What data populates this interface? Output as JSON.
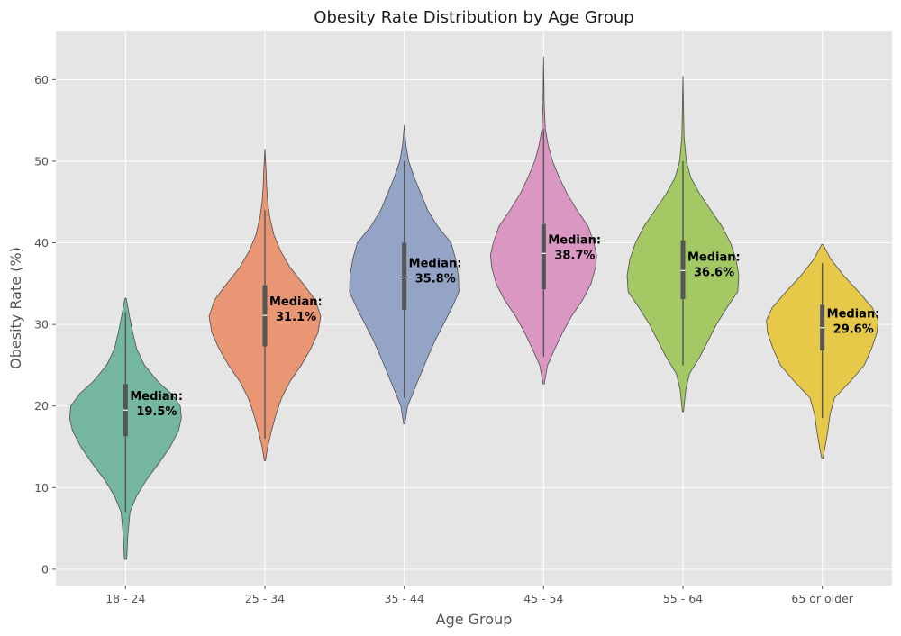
{
  "chart_data": {
    "type": "violin",
    "title": "Obesity Rate Distribution by Age Group",
    "xlabel": "Age Group",
    "ylabel": "Obesity Rate (%)",
    "ylim": [
      -2,
      66
    ],
    "yticks": [
      "0",
      "10",
      "20",
      "30",
      "40",
      "50",
      "60"
    ],
    "grid": true,
    "median_prefix": "Median:",
    "categories": [
      {
        "label": "18 - 24",
        "color": "#74b6a2",
        "min": 1.2,
        "max": 33.2,
        "q1": 16.3,
        "median": 19.5,
        "q3": 22.7,
        "whisker_low": 7.0,
        "whisker_high": 31.5,
        "median_label": "19.5%",
        "density": [
          [
            1.2,
            0.02
          ],
          [
            4,
            0.04
          ],
          [
            7,
            0.08
          ],
          [
            9,
            0.2
          ],
          [
            11,
            0.38
          ],
          [
            13,
            0.6
          ],
          [
            15,
            0.8
          ],
          [
            17,
            0.95
          ],
          [
            18.5,
            1.0
          ],
          [
            20,
            0.98
          ],
          [
            21.5,
            0.82
          ],
          [
            23,
            0.58
          ],
          [
            25,
            0.34
          ],
          [
            27,
            0.2
          ],
          [
            29,
            0.13
          ],
          [
            31,
            0.07
          ],
          [
            33.2,
            0.01
          ]
        ]
      },
      {
        "label": "25 - 34",
        "color": "#e99675",
        "min": 13.3,
        "max": 51.5,
        "q1": 27.3,
        "median": 31.1,
        "q3": 34.8,
        "whisker_low": 16.0,
        "whisker_high": 44.0,
        "median_label": "31.1%",
        "density": [
          [
            13.3,
            0.01
          ],
          [
            15,
            0.05
          ],
          [
            17,
            0.12
          ],
          [
            19,
            0.2
          ],
          [
            21,
            0.3
          ],
          [
            23,
            0.45
          ],
          [
            25,
            0.65
          ],
          [
            27,
            0.82
          ],
          [
            29,
            0.95
          ],
          [
            31,
            1.0
          ],
          [
            33,
            0.9
          ],
          [
            35,
            0.68
          ],
          [
            37,
            0.45
          ],
          [
            39,
            0.28
          ],
          [
            41,
            0.16
          ],
          [
            43,
            0.09
          ],
          [
            45,
            0.05
          ],
          [
            47,
            0.03
          ],
          [
            49,
            0.02
          ],
          [
            51.5,
            0.0
          ]
        ]
      },
      {
        "label": "35 - 44",
        "color": "#93a4c6",
        "min": 17.8,
        "max": 54.4,
        "q1": 31.8,
        "median": 35.8,
        "q3": 40.0,
        "whisker_low": 21.0,
        "whisker_high": 50.0,
        "median_label": "35.8%",
        "density": [
          [
            17.8,
            0.01
          ],
          [
            20,
            0.06
          ],
          [
            22,
            0.18
          ],
          [
            24,
            0.3
          ],
          [
            26,
            0.42
          ],
          [
            28,
            0.55
          ],
          [
            30,
            0.7
          ],
          [
            32,
            0.85
          ],
          [
            34,
            0.98
          ],
          [
            36,
            0.97
          ],
          [
            38,
            0.92
          ],
          [
            40,
            0.84
          ],
          [
            42,
            0.6
          ],
          [
            44,
            0.42
          ],
          [
            46,
            0.3
          ],
          [
            48,
            0.18
          ],
          [
            50,
            0.08
          ],
          [
            52,
            0.03
          ],
          [
            54.4,
            0.0
          ]
        ]
      },
      {
        "label": "45 - 54",
        "color": "#da97c1",
        "min": 22.7,
        "max": 62.8,
        "q1": 34.3,
        "median": 38.7,
        "q3": 42.3,
        "whisker_low": 26.0,
        "whisker_high": 54.0,
        "median_label": "38.7%",
        "density": [
          [
            22.7,
            0.01
          ],
          [
            25,
            0.07
          ],
          [
            27,
            0.2
          ],
          [
            29,
            0.34
          ],
          [
            31,
            0.5
          ],
          [
            33,
            0.7
          ],
          [
            35,
            0.85
          ],
          [
            37,
            0.93
          ],
          [
            38.5,
            0.95
          ],
          [
            40,
            0.9
          ],
          [
            42,
            0.8
          ],
          [
            44,
            0.6
          ],
          [
            46,
            0.42
          ],
          [
            48,
            0.28
          ],
          [
            50,
            0.16
          ],
          [
            52,
            0.08
          ],
          [
            54,
            0.03
          ],
          [
            57,
            0.01
          ],
          [
            62.8,
            0.0
          ]
        ]
      },
      {
        "label": "55 - 64",
        "color": "#a3c864",
        "min": 19.3,
        "max": 60.4,
        "q1": 33.1,
        "median": 36.6,
        "q3": 40.3,
        "whisker_low": 25.0,
        "whisker_high": 50.0,
        "median_label": "36.6%",
        "density": [
          [
            19.3,
            0.01
          ],
          [
            22,
            0.05
          ],
          [
            24,
            0.12
          ],
          [
            26,
            0.3
          ],
          [
            28,
            0.45
          ],
          [
            30,
            0.6
          ],
          [
            32,
            0.78
          ],
          [
            34,
            0.98
          ],
          [
            36,
            1.0
          ],
          [
            38,
            0.95
          ],
          [
            40,
            0.85
          ],
          [
            42,
            0.7
          ],
          [
            44,
            0.5
          ],
          [
            46,
            0.3
          ],
          [
            48,
            0.14
          ],
          [
            50,
            0.06
          ],
          [
            53,
            0.02
          ],
          [
            60.4,
            0.0
          ]
        ]
      },
      {
        "label": "65 or older",
        "color": "#e6c949",
        "min": 13.6,
        "max": 39.8,
        "q1": 26.8,
        "median": 29.6,
        "q3": 32.4,
        "whisker_low": 18.5,
        "whisker_high": 37.5,
        "median_label": "29.6%",
        "density": [
          [
            13.6,
            0.01
          ],
          [
            15,
            0.05
          ],
          [
            17,
            0.1
          ],
          [
            19,
            0.14
          ],
          [
            21,
            0.22
          ],
          [
            23,
            0.5
          ],
          [
            25,
            0.75
          ],
          [
            27,
            0.88
          ],
          [
            29,
            0.98
          ],
          [
            30.5,
            1.0
          ],
          [
            32,
            0.9
          ],
          [
            34,
            0.65
          ],
          [
            36,
            0.38
          ],
          [
            38,
            0.15
          ],
          [
            39.8,
            0.01
          ]
        ]
      }
    ]
  }
}
